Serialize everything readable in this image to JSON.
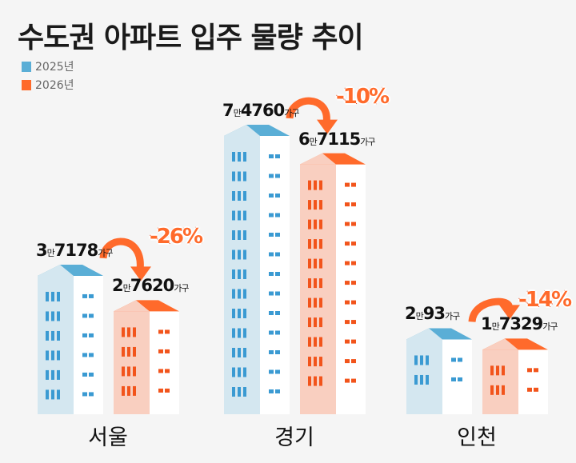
{
  "chart_data": {
    "type": "bar",
    "title": "수도권 아파트 입주 물량 추이",
    "categories": [
      "서울",
      "경기",
      "인천"
    ],
    "unit_man": "만",
    "unit_household": "가구",
    "series": [
      {
        "name": "2025년",
        "color": "#5aaed6",
        "values": [
          37178,
          74760,
          20093
        ],
        "labels": [
          {
            "high": "3",
            "low": "7178"
          },
          {
            "high": "7",
            "low": "4760"
          },
          {
            "high": "2",
            "low": "93"
          }
        ]
      },
      {
        "name": "2026년",
        "color": "#ff6a2b",
        "values": [
          27620,
          67115,
          17329
        ],
        "labels": [
          {
            "high": "2",
            "low": "7620"
          },
          {
            "high": "6",
            "low": "7115"
          },
          {
            "high": "1",
            "low": "7329"
          }
        ]
      }
    ],
    "changes": [
      "-26%",
      "-10%",
      "-14%"
    ],
    "legend": "top-left"
  }
}
